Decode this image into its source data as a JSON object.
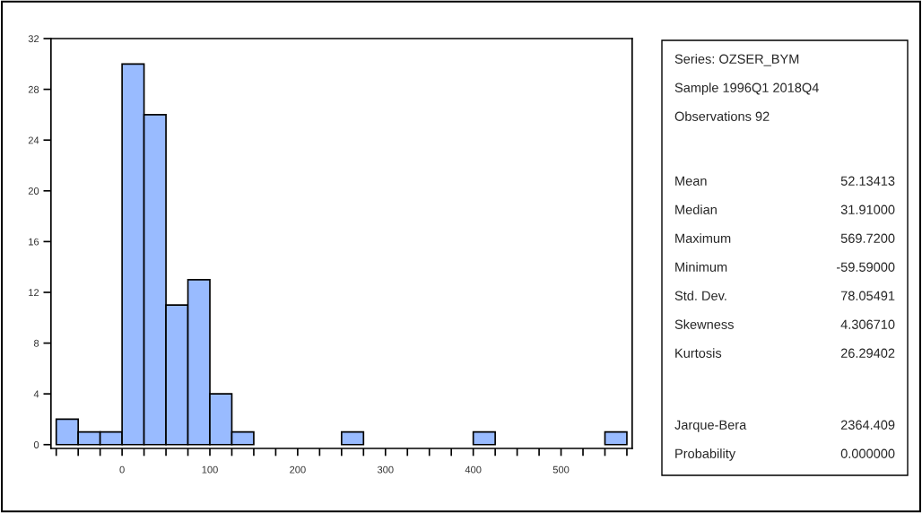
{
  "chart_data": {
    "type": "histogram",
    "bins": [
      -75,
      -50,
      -25,
      0,
      25,
      50,
      75,
      100,
      125,
      150,
      175,
      200,
      225,
      250,
      275,
      300,
      325,
      350,
      375,
      400,
      425,
      450,
      475,
      500,
      525,
      550,
      575
    ],
    "values": [
      2,
      1,
      1,
      30,
      26,
      11,
      13,
      4,
      1,
      0,
      0,
      0,
      0,
      1,
      0,
      0,
      0,
      0,
      0,
      1,
      0,
      0,
      0,
      0,
      0,
      1
    ],
    "color": "#99bbff",
    "xlim": [
      -81,
      581
    ],
    "xticks": [
      {
        "value": -75,
        "label": null
      },
      {
        "value": -50,
        "label": null
      },
      {
        "value": -25,
        "label": null
      },
      0,
      {
        "value": 25,
        "label": null
      },
      {
        "value": 50,
        "label": null
      },
      {
        "value": 75,
        "label": null
      },
      100,
      {
        "value": 125,
        "label": null
      },
      {
        "value": 150,
        "label": null
      },
      {
        "value": 175,
        "label": null
      },
      200,
      {
        "value": 225,
        "label": null
      },
      {
        "value": 250,
        "label": null
      },
      {
        "value": 275,
        "label": null
      },
      300,
      {
        "value": 325,
        "label": null
      },
      {
        "value": 350,
        "label": null
      },
      {
        "value": 375,
        "label": null
      },
      400,
      {
        "value": 425,
        "label": null
      },
      {
        "value": 450,
        "label": null
      },
      {
        "value": 475,
        "label": null
      },
      500,
      {
        "value": 525,
        "label": null
      },
      {
        "value": 550,
        "label": null
      },
      {
        "value": 575,
        "label": null
      }
    ],
    "ylim": [
      -0.3,
      32
    ],
    "yticks": [
      0,
      4,
      8,
      12,
      16,
      20,
      24,
      28,
      32
    ],
    "grid": false,
    "legend": false,
    "annotations": [
      "Series: OZSER_BYM",
      "Sample 1996Q1 2018Q4",
      "Observations 92",
      "Mean",
      "52.13413",
      "Median",
      "31.91000",
      "Maximum",
      "569.7200",
      "Minimum",
      "-59.59000",
      "Std. Dev.",
      "78.05491",
      "Skewness",
      "4.306710",
      "Kurtosis",
      "26.29402",
      "Jarque-Bera",
      "2364.409",
      "Probability",
      "0.000000"
    ]
  }
}
